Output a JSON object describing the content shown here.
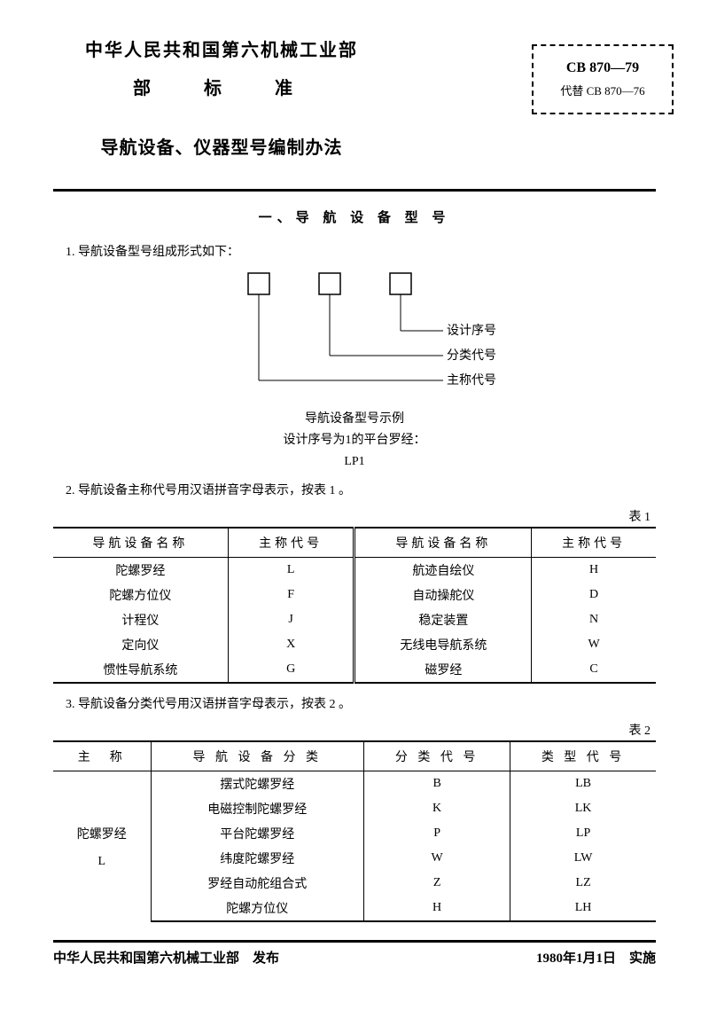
{
  "header": {
    "issuer": "中华人民共和国第六机械工业部",
    "standard_label": "部　标　准",
    "title": "导航设备、仪器型号编制办法",
    "code_main": "CB 870—79",
    "code_sub": "代替 CB 870—76"
  },
  "section1": {
    "title": "一、导 航 设 备 型 号",
    "item1": "1. 导航设备型号组成形式如下：",
    "diagram": {
      "labels": {
        "a": "设计序号",
        "b": "分类代号",
        "c": "主称代号"
      },
      "box_stroke": "#000000",
      "line_stroke": "#000000"
    },
    "example": {
      "l1": "导航设备型号示例",
      "l2": "设计序号为1的平台罗经：",
      "l3": "LP1"
    },
    "item2": "2. 导航设备主称代号用汉语拼音字母表示，按表 1 。"
  },
  "table1": {
    "caption": "表 1",
    "columns": [
      "导航设备名称",
      "主称代号",
      "导航设备名称",
      "主称代号"
    ],
    "rows": [
      [
        "陀螺罗经",
        "L",
        "航迹自绘仪",
        "H"
      ],
      [
        "陀螺方位仪",
        "F",
        "自动操舵仪",
        "D"
      ],
      [
        "计程仪",
        "J",
        "稳定装置",
        "N"
      ],
      [
        "定向仪",
        "X",
        "无线电导航系统",
        "W"
      ],
      [
        "惯性导航系统",
        "G",
        "磁罗经",
        "C"
      ]
    ]
  },
  "section1b": {
    "item3": "3. 导航设备分类代号用汉语拼音字母表示，按表 2 。"
  },
  "table2": {
    "caption": "表 2",
    "columns": [
      "主　称",
      "导 航 设 备 分 类",
      "分 类 代 号",
      "类 型 代 号"
    ],
    "group": {
      "name": "陀螺罗经",
      "code": "L"
    },
    "rows": [
      [
        "摆式陀螺罗经",
        "B",
        "LB"
      ],
      [
        "电磁控制陀螺罗经",
        "K",
        "LK"
      ],
      [
        "平台陀螺罗经",
        "P",
        "LP"
      ],
      [
        "纬度陀螺罗经",
        "W",
        "LW"
      ],
      [
        "罗经自动舵组合式",
        "Z",
        "LZ"
      ],
      [
        "陀螺方位仪",
        "H",
        "LH"
      ]
    ]
  },
  "footer": {
    "left": "中华人民共和国第六机械工业部　发布",
    "right": "1980年1月1日　实施"
  },
  "style": {
    "background": "#ffffff",
    "text_color": "#000000",
    "rule_color": "#000000",
    "body_fontsize": 14,
    "title_fontsize": 20
  }
}
